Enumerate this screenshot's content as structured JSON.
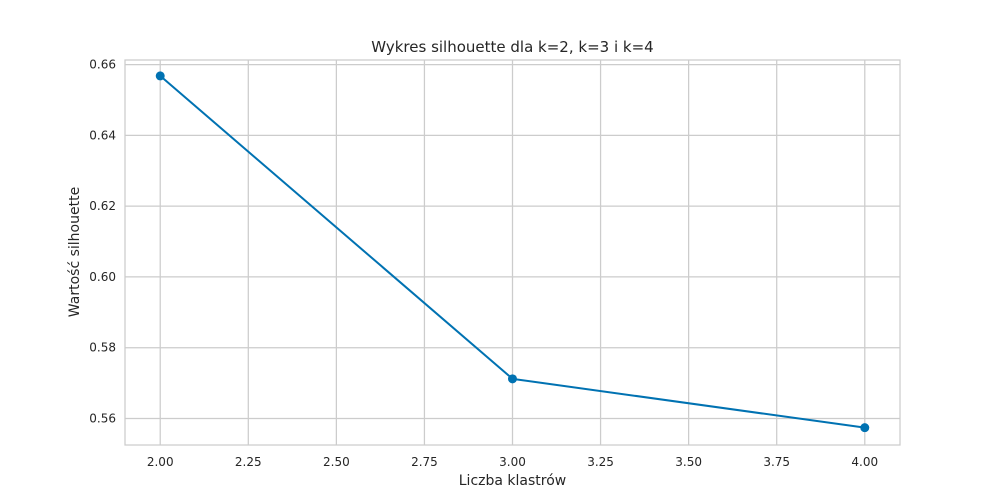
{
  "chart_data": {
    "type": "line",
    "title": "Wykres silhouette dla k=2, k=3 i k=4",
    "xlabel": "Liczba klastrów",
    "ylabel": "Wartość silhouette",
    "x": [
      2,
      3,
      4
    ],
    "series": [
      {
        "values": [
          0.6568,
          0.5712,
          0.5574
        ],
        "color": "#0072b2"
      }
    ],
    "xlim": [
      1.9,
      4.1
    ],
    "ylim": [
      0.5525,
      0.6613
    ],
    "x_ticks": [
      2.0,
      2.25,
      2.5,
      2.75,
      3.0,
      3.25,
      3.5,
      3.75,
      4.0
    ],
    "x_tick_labels": [
      "2.00",
      "2.25",
      "2.50",
      "2.75",
      "3.00",
      "3.25",
      "3.50",
      "3.75",
      "4.00"
    ],
    "y_ticks": [
      0.56,
      0.58,
      0.6,
      0.62,
      0.64,
      0.66
    ],
    "y_tick_labels": [
      "0.56",
      "0.58",
      "0.60",
      "0.62",
      "0.64",
      "0.66"
    ],
    "grid": true,
    "marker": "circle",
    "colors": {
      "grid": "#cccccc",
      "frame": "#cccccc",
      "line": "#0072b2",
      "text": "#262626"
    }
  }
}
